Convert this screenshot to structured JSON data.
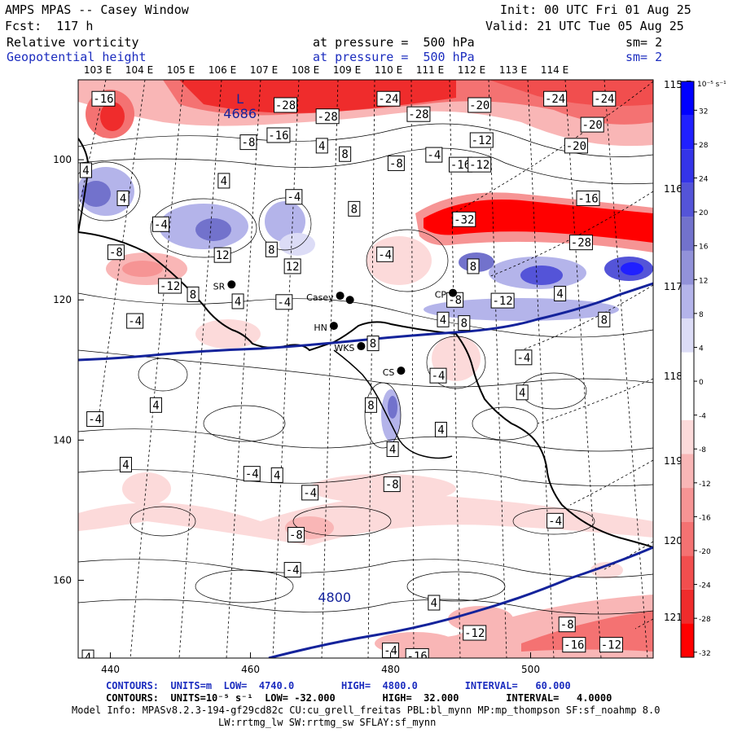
{
  "header": {
    "title": "AMPS MPAS -- Casey Window",
    "init": "Init: 00 UTC Fri 01 Aug 25",
    "fcst": "Fcst:  117 h",
    "valid": "Valid: 21 UTC Tue 05 Aug 25",
    "field1_name": "Relative vorticity",
    "field1_level": "at pressure =  500 hPa",
    "field1_sm": "sm= 2",
    "field2_name": "Geopotential height",
    "field2_level": "at pressure =  500 hPa",
    "field2_sm": "sm= 2"
  },
  "map": {
    "top_lon_labels": [
      "103 E",
      "104 E",
      "105 E",
      "106 E",
      "107 E",
      "108 E",
      "109 E",
      "110 E",
      "111 E",
      "112 E",
      "113 E",
      "114 E"
    ],
    "right_lon_labels": [
      "115 E",
      "116 E",
      "117 E",
      "118 E",
      "119 E",
      "120 E",
      "121 E"
    ],
    "x_ticks": [
      "440",
      "460",
      "480",
      "500"
    ],
    "y_ticks": [
      "100",
      "120",
      "140",
      "160"
    ],
    "stations": [
      {
        "label": "SR",
        "gx": 457.3,
        "gy": 117.8
      },
      {
        "label": "Casey",
        "gx": 472.8,
        "gy": 119.4
      },
      {
        "label": "",
        "gx": 474.2,
        "gy": 120.0
      },
      {
        "label": "HN",
        "gx": 471.9,
        "gy": 123.7
      },
      {
        "label": "WKS",
        "gx": 475.8,
        "gy": 126.6
      },
      {
        "label": "CS",
        "gx": 481.5,
        "gy": 130.1
      },
      {
        "label": "CP",
        "gx": 488.9,
        "gy": 119.0
      }
    ],
    "height_labels": [
      {
        "text": "4686",
        "gx": 458.5,
        "gy": 93.5
      },
      {
        "text": "4800",
        "gx": 472.0,
        "gy": 162.5
      }
    ],
    "low_marker": {
      "text": "L",
      "gx": 458.5,
      "gy": 91.3
    },
    "vort_labels": [
      {
        "t": "-16",
        "gx": 439.0,
        "gy": 91.3
      },
      {
        "t": "-28",
        "gx": 465.0,
        "gy": 92.2
      },
      {
        "t": "-28",
        "gx": 471.0,
        "gy": 93.8
      },
      {
        "t": "-24",
        "gx": 479.7,
        "gy": 91.3
      },
      {
        "t": "-28",
        "gx": 484.0,
        "gy": 93.5
      },
      {
        "t": "-20",
        "gx": 492.7,
        "gy": 92.2
      },
      {
        "t": "-24",
        "gx": 503.5,
        "gy": 91.3
      },
      {
        "t": "-24",
        "gx": 510.5,
        "gy": 91.3
      },
      {
        "t": "-16",
        "gx": 464.0,
        "gy": 96.5
      },
      {
        "t": "-8",
        "gx": 459.7,
        "gy": 97.5
      },
      {
        "t": "4",
        "gx": 470.2,
        "gy": 98.0
      },
      {
        "t": "8",
        "gx": 473.5,
        "gy": 99.2
      },
      {
        "t": "-8",
        "gx": 480.8,
        "gy": 100.5
      },
      {
        "t": "-4",
        "gx": 486.2,
        "gy": 99.3
      },
      {
        "t": "-16",
        "gx": 490.0,
        "gy": 100.7
      },
      {
        "t": "-12",
        "gx": 492.7,
        "gy": 100.7
      },
      {
        "t": "-12",
        "gx": 493.0,
        "gy": 97.2
      },
      {
        "t": "-20",
        "gx": 506.5,
        "gy": 98.0
      },
      {
        "t": "-20",
        "gx": 508.8,
        "gy": 95.0
      },
      {
        "t": "-16",
        "gx": 508.2,
        "gy": 105.5
      },
      {
        "t": "4",
        "gx": 436.5,
        "gy": 101.5
      },
      {
        "t": "4",
        "gx": 441.8,
        "gy": 105.5
      },
      {
        "t": "-4",
        "gx": 447.2,
        "gy": 109.2
      },
      {
        "t": "4",
        "gx": 456.2,
        "gy": 103.0
      },
      {
        "t": "-4",
        "gx": 466.2,
        "gy": 105.3
      },
      {
        "t": "8",
        "gx": 474.8,
        "gy": 107.0
      },
      {
        "t": "-32",
        "gx": 490.5,
        "gy": 108.5
      },
      {
        "t": "-28",
        "gx": 507.2,
        "gy": 111.8
      },
      {
        "t": "-8",
        "gx": 440.8,
        "gy": 113.2
      },
      {
        "t": "12",
        "gx": 456.0,
        "gy": 113.6
      },
      {
        "t": "8",
        "gx": 463.0,
        "gy": 112.8
      },
      {
        "t": "12",
        "gx": 466.0,
        "gy": 115.2
      },
      {
        "t": "-4",
        "gx": 479.2,
        "gy": 113.5
      },
      {
        "t": "8",
        "gx": 491.8,
        "gy": 115.2
      },
      {
        "t": "-12",
        "gx": 448.5,
        "gy": 118.0
      },
      {
        "t": "8",
        "gx": 451.8,
        "gy": 119.2
      },
      {
        "t": "4",
        "gx": 458.2,
        "gy": 120.2
      },
      {
        "t": "-4",
        "gx": 464.8,
        "gy": 120.3
      },
      {
        "t": "-8",
        "gx": 489.2,
        "gy": 120.0
      },
      {
        "t": "4",
        "gx": 504.2,
        "gy": 119.1
      },
      {
        "t": "-12",
        "gx": 496.0,
        "gy": 120.1
      },
      {
        "t": "-4",
        "gx": 443.5,
        "gy": 123.0
      },
      {
        "t": "4",
        "gx": 487.5,
        "gy": 122.8
      },
      {
        "t": "8",
        "gx": 490.5,
        "gy": 123.3
      },
      {
        "t": "8",
        "gx": 510.5,
        "gy": 122.8
      },
      {
        "t": "8",
        "gx": 477.5,
        "gy": 126.2
      },
      {
        "t": "-4",
        "gx": 499.0,
        "gy": 128.2
      },
      {
        "t": "-4",
        "gx": 486.8,
        "gy": 130.8
      },
      {
        "t": "4",
        "gx": 498.8,
        "gy": 133.2
      },
      {
        "t": "4",
        "gx": 446.5,
        "gy": 135.0
      },
      {
        "t": "8",
        "gx": 477.2,
        "gy": 135.0
      },
      {
        "t": "-4",
        "gx": 437.8,
        "gy": 137.0
      },
      {
        "t": "4",
        "gx": 487.2,
        "gy": 138.5
      },
      {
        "t": "4",
        "gx": 480.3,
        "gy": 141.3
      },
      {
        "t": "4",
        "gx": 442.2,
        "gy": 143.5
      },
      {
        "t": "-4",
        "gx": 460.2,
        "gy": 144.8
      },
      {
        "t": "4",
        "gx": 463.8,
        "gy": 145.0
      },
      {
        "t": "-4",
        "gx": 468.5,
        "gy": 147.5
      },
      {
        "t": "-8",
        "gx": 480.2,
        "gy": 146.3
      },
      {
        "t": "-4",
        "gx": 503.5,
        "gy": 151.5
      },
      {
        "t": "-8",
        "gx": 466.5,
        "gy": 153.5
      },
      {
        "t": "-4",
        "gx": 466.0,
        "gy": 158.5
      },
      {
        "t": "4",
        "gx": 486.2,
        "gy": 163.2
      },
      {
        "t": "-8",
        "gx": 505.2,
        "gy": 166.3
      },
      {
        "t": "-12",
        "gx": 492.0,
        "gy": 167.5
      },
      {
        "t": "-16",
        "gx": 506.2,
        "gy": 169.2
      },
      {
        "t": "-12",
        "gx": 511.5,
        "gy": 169.2
      },
      {
        "t": "-4",
        "gx": 480.0,
        "gy": 170.0
      },
      {
        "t": "-16",
        "gx": 483.8,
        "gy": 170.8
      },
      {
        "t": "4",
        "gx": 436.8,
        "gy": 171.0
      }
    ]
  },
  "colorbar": {
    "unit": "10⁻⁵ s⁻¹",
    "labels": [
      "32",
      "28",
      "24",
      "20",
      "16",
      "12",
      "8",
      "4",
      "0",
      "-4",
      "-8",
      "-12",
      "-16",
      "-20",
      "-24",
      "-28",
      "-32"
    ],
    "colors": [
      "#0000ff",
      "#2020ff",
      "#3434e8",
      "#5454d8",
      "#7272cc",
      "#9292d9",
      "#b4b4ea",
      "#dcdcf6",
      "#ffffff",
      "#ffffff",
      "#fcdada",
      "#f9b6b6",
      "#f69494",
      "#f47272",
      "#f14e4e",
      "#ef2c2c",
      "#ff0000"
    ]
  },
  "footer": {
    "contours1": "CONTOURS:  UNITS=m  LOW=  4740.0        HIGH=  4800.0        INTERVAL=   60.000",
    "contours2": "CONTOURS:  UNITS=10⁻⁵ s⁻¹  LOW= -32.000        HIGH=  32.000        INTERVAL=   4.0000",
    "model1": "Model Info: MPASv8.2.3-194-gf29cd82c CU:cu_grell_freitas PBL:bl_mynn MP:mp_thompson SF:sf_noahmp 8.0",
    "model2": "LW:rrtmg_lw SW:rrtmg_sw SFLAY:sf_mynn"
  }
}
